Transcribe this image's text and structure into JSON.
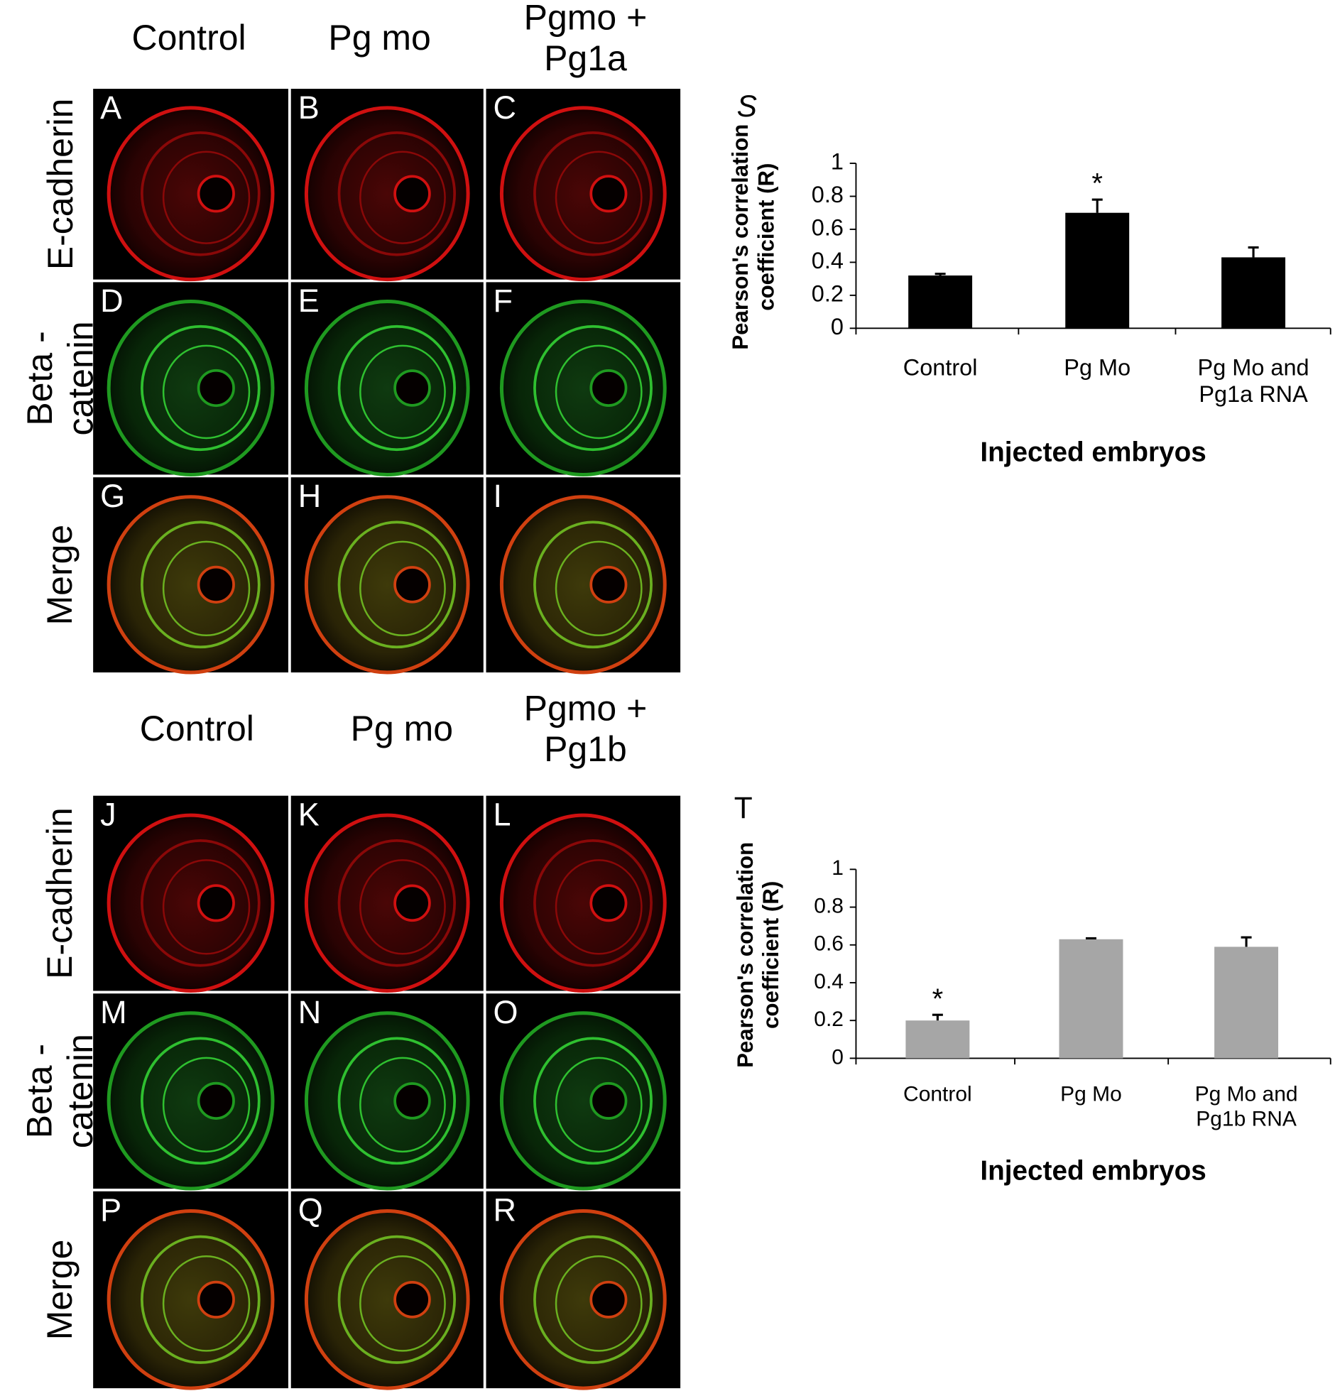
{
  "figure": {
    "top": {
      "columns": [
        "Control",
        "Pg mo",
        "Pgmo + Pg1a"
      ],
      "rows": [
        "E-cadherin",
        "Beta -catenin",
        "Merge"
      ],
      "panels": [
        "A",
        "B",
        "C",
        "D",
        "E",
        "F",
        "G",
        "H",
        "I"
      ]
    },
    "bottom": {
      "columns": [
        "Control",
        "Pg mo",
        "Pgmo + Pg1b"
      ],
      "rows": [
        "E-cadherin",
        "Beta -catenin",
        "Merge"
      ],
      "panels": [
        "J",
        "K",
        "L",
        "M",
        "N",
        "O",
        "P",
        "Q",
        "R"
      ]
    }
  },
  "chart_data": [
    {
      "type": "bar",
      "panel": "S",
      "ylabel": "Pearson's correlation coefficient (R)",
      "xlabel": "Injected embryos",
      "categories": [
        "Control",
        "Pg Mo",
        "Pg Mo and Pg1a RNA"
      ],
      "values": [
        0.32,
        0.7,
        0.43
      ],
      "errors": [
        0.01,
        0.08,
        0.06
      ],
      "significance": [
        null,
        "*",
        null
      ],
      "color": "#000000",
      "ylim": [
        0,
        1
      ],
      "yticks": [
        0,
        0.2,
        0.4,
        0.6,
        0.8,
        1
      ]
    },
    {
      "type": "bar",
      "panel": "T",
      "ylabel": "Pearson's correlation coefficient (R)",
      "xlabel": "Injected embryos",
      "categories": [
        "Control",
        "Pg Mo",
        "Pg Mo and Pg1b RNA"
      ],
      "values": [
        0.2,
        0.63,
        0.59
      ],
      "errors": [
        0.03,
        0.005,
        0.05
      ],
      "significance": [
        "*",
        null,
        null
      ],
      "color": "#a6a6a6",
      "ylim": [
        0,
        1
      ],
      "yticks": [
        0,
        0.2,
        0.4,
        0.6,
        0.8,
        1
      ]
    }
  ]
}
